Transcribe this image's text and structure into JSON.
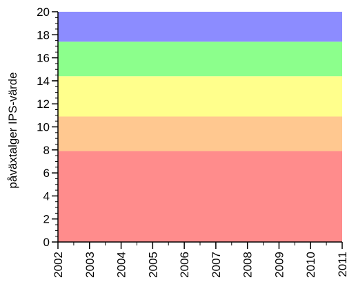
{
  "chart_data": {
    "type": "area",
    "ylabel": "påväxtalger IPS-värde",
    "xlabel": "",
    "xlim": [
      2002,
      2011
    ],
    "ylim": [
      0,
      20
    ],
    "x_ticks": [
      "2002",
      "2003",
      "2004",
      "2005",
      "2006",
      "2007",
      "2008",
      "2009",
      "2010",
      "2011"
    ],
    "y_ticks": [
      "0",
      "2",
      "4",
      "6",
      "8",
      "10",
      "12",
      "14",
      "16",
      "18",
      "20"
    ],
    "x_minor_step": 0.5,
    "y_minor_step": 0.5,
    "grid": false,
    "bands": [
      {
        "from": 0,
        "to": 7.9,
        "color": "#ff8c8c"
      },
      {
        "from": 7.9,
        "to": 10.9,
        "color": "#ffc890"
      },
      {
        "from": 10.9,
        "to": 14.4,
        "color": "#ffff8c"
      },
      {
        "from": 14.4,
        "to": 17.4,
        "color": "#8cff8c"
      },
      {
        "from": 17.4,
        "to": 20,
        "color": "#8c8cff"
      }
    ]
  }
}
